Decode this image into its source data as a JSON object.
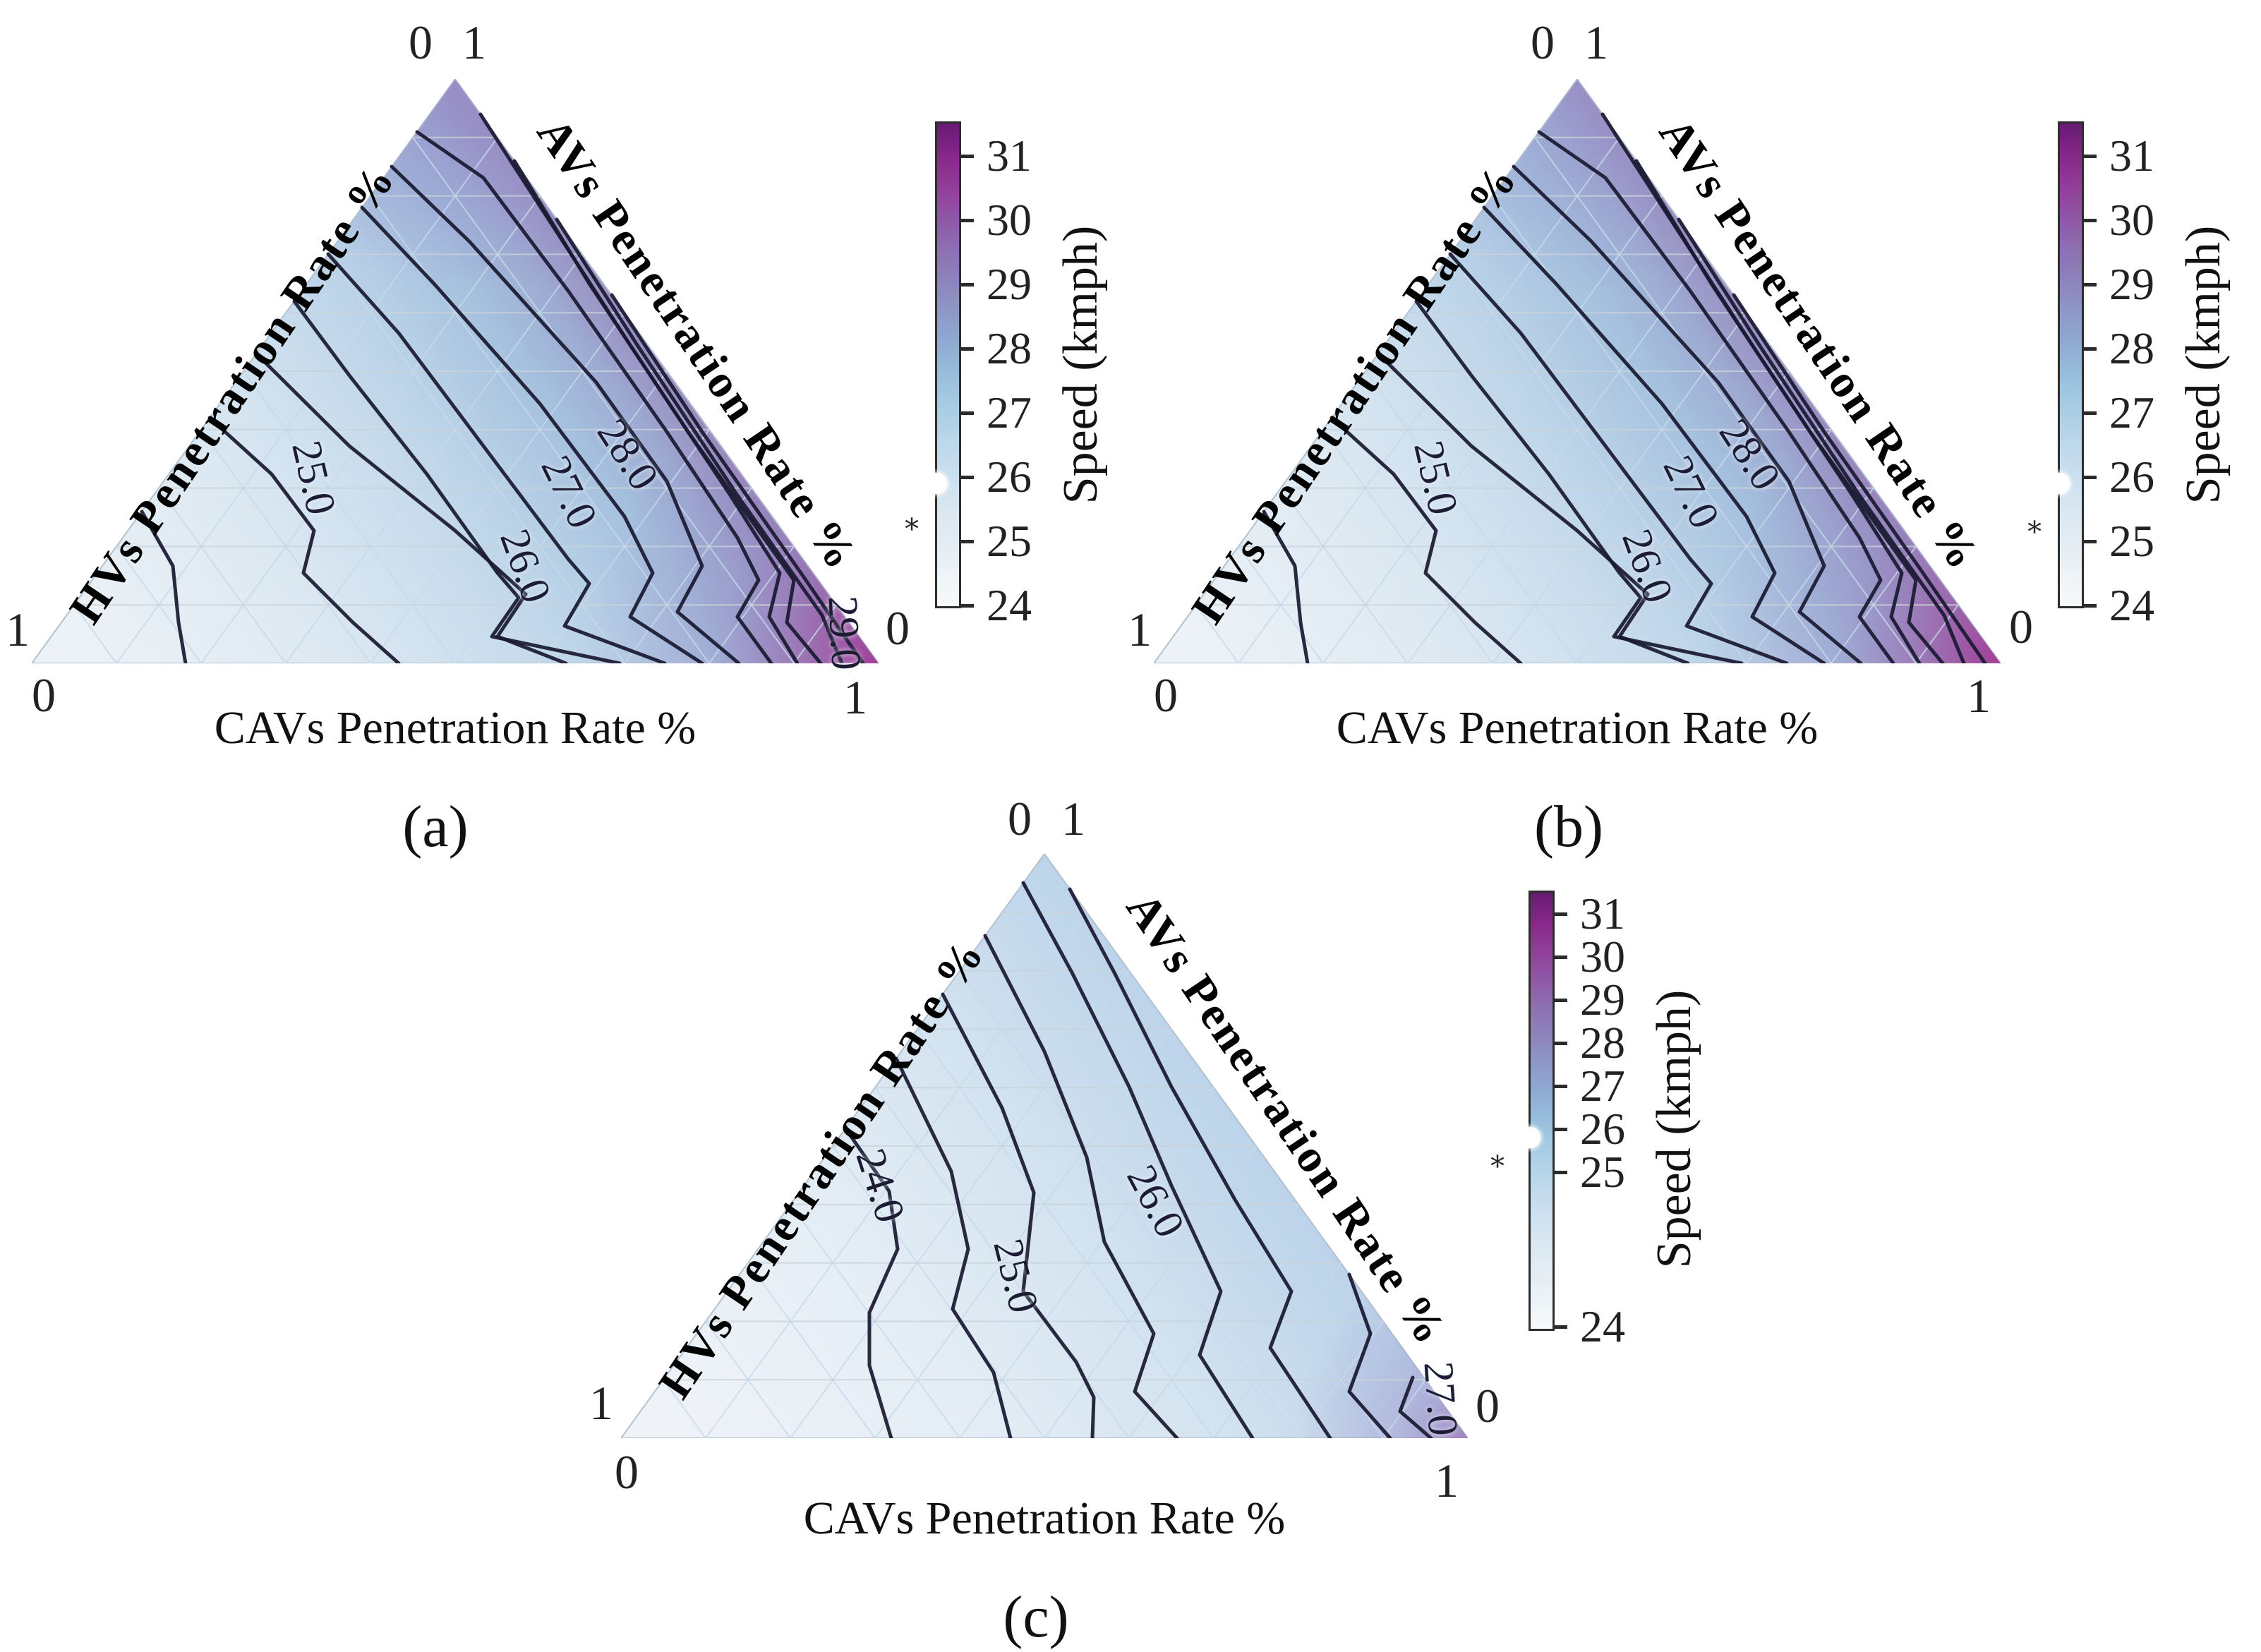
{
  "figure": {
    "title": "",
    "background": "#ffffff",
    "accent_colors": {
      "contour_line": "#1c1c34",
      "grid_line": "#c6daea",
      "colormap_low": "#f7fafb",
      "colormap_mid_blue": "#9cc3e0",
      "colormap_high_magenta": "#8a2b8d"
    }
  },
  "subplots": [
    {
      "id": "a",
      "caption": "(a)",
      "axes": {
        "left_label": "HVs Penetration Rate %",
        "right_label": "AVs Penetration Rate %",
        "bottom_label": "CAVs Penetration Rate %"
      },
      "corner_ticks": {
        "top_left": "0",
        "top_right": "1",
        "left_upper": "1",
        "left_lower": "0",
        "right_upper": "0",
        "right_lower": "1"
      },
      "contour_labels": [
        {
          "text": "25.0"
        },
        {
          "text": "26.0"
        },
        {
          "text": "27.0"
        },
        {
          "text": "28.0"
        },
        {
          "text": "29.0"
        }
      ],
      "colorbar": {
        "label": "Speed (kmph)",
        "ticks": [
          "31",
          "30",
          "29",
          "28",
          "27",
          "26",
          "25",
          "24"
        ],
        "marker": "white-dot-near-26",
        "small_glyph": "∗"
      }
    },
    {
      "id": "b",
      "caption": "(b)",
      "axes": {
        "left_label": "HVs Penetration Rate %",
        "right_label": "AVs Penetration Rate %",
        "bottom_label": "CAVs Penetration Rate %"
      },
      "corner_ticks": {
        "top_left": "0",
        "top_right": "1",
        "left_upper": "1",
        "left_lower": "0",
        "right_upper": "0",
        "right_lower": "1"
      },
      "contour_labels": [
        {
          "text": "25.0"
        },
        {
          "text": "26.0"
        },
        {
          "text": "27.0"
        },
        {
          "text": "28.0"
        }
      ],
      "colorbar": {
        "label": "Speed (kmph)",
        "ticks": [
          "31",
          "30",
          "29",
          "28",
          "27",
          "26",
          "25",
          "24"
        ],
        "marker": "white-dot-near-26",
        "small_glyph": "∗"
      }
    },
    {
      "id": "c",
      "caption": "(c)",
      "axes": {
        "left_label": "HVs Penetration Rate %",
        "right_label": "AVs Penetration Rate %",
        "bottom_label": "CAVs Penetration Rate %"
      },
      "corner_ticks": {
        "top_left": "0",
        "top_right": "1",
        "left_upper": "1",
        "left_lower": "0",
        "right_upper": "0",
        "right_lower": "1"
      },
      "contour_labels": [
        {
          "text": "24.0"
        },
        {
          "text": "25.0"
        },
        {
          "text": "26.0"
        },
        {
          "text": "27.0"
        }
      ],
      "colorbar": {
        "label": "Speed (kmph)",
        "ticks": [
          "31",
          "30",
          "29",
          "28",
          "27",
          "26",
          "25",
          "24"
        ],
        "marker": "white-dot-near-26",
        "small_glyph": "∗"
      }
    }
  ],
  "chart_data": [
    {
      "type": "ternary-contour",
      "subplot": "(a)",
      "axes": {
        "left": "HVs Penetration Rate %",
        "right": "AVs Penetration Rate %",
        "bottom": "CAVs Penetration Rate %",
        "range": [
          0,
          1
        ]
      },
      "value_label": "Speed (kmph)",
      "colorbar_ticks": [
        24,
        25,
        26,
        27,
        28,
        29,
        30,
        31
      ],
      "colorbar_range": [
        24,
        31.5
      ],
      "colormap": "white -> light blue -> blue-purple -> magenta (BuPu-like)",
      "labeled_contour_levels": [
        25.0,
        26.0,
        27.0,
        28.0,
        29.0
      ],
      "approx_contour_interval": 0.5,
      "approx_corner_speeds_kmph": {
        "all_HVs": 24.3,
        "all_AVs": 28.8,
        "all_CAVs": 31.3
      },
      "trend": "speed increases toward the 100% CAVs corner; highest values concentrated along the AVs-CAVs edge"
    },
    {
      "type": "ternary-contour",
      "subplot": "(b)",
      "axes": {
        "left": "HVs Penetration Rate %",
        "right": "AVs Penetration Rate %",
        "bottom": "CAVs Penetration Rate %",
        "range": [
          0,
          1
        ]
      },
      "value_label": "Speed (kmph)",
      "colorbar_ticks": [
        24,
        25,
        26,
        27,
        28,
        29,
        30,
        31
      ],
      "colorbar_range": [
        24,
        31.5
      ],
      "colormap": "white -> light blue -> blue-purple -> magenta (BuPu-like)",
      "labeled_contour_levels": [
        25.0,
        26.0,
        27.0,
        28.0
      ],
      "approx_contour_interval": 0.5,
      "approx_corner_speeds_kmph": {
        "all_HVs": 24.4,
        "all_AVs": 28.4,
        "all_CAVs": 31.1
      },
      "trend": "speed increases toward the 100% CAVs corner; slightly less purple near the AVs apex than (a)"
    },
    {
      "type": "ternary-contour",
      "subplot": "(c)",
      "axes": {
        "left": "HVs Penetration Rate %",
        "right": "AVs Penetration Rate %",
        "bottom": "CAVs Penetration Rate %",
        "range": [
          0,
          1
        ]
      },
      "value_label": "Speed (kmph)",
      "colorbar_ticks": [
        24,
        25,
        26,
        27,
        28,
        29,
        30,
        31
      ],
      "colorbar_range": [
        24,
        31.5
      ],
      "colormap": "white -> light blue -> blue-purple -> magenta (BuPu-like)",
      "labeled_contour_levels": [
        24.0,
        25.0,
        26.0,
        27.0
      ],
      "approx_contour_interval": 0.5,
      "approx_corner_speeds_kmph": {
        "all_HVs": 23.7,
        "all_AVs": 26.6,
        "all_CAVs": 27.9
      },
      "trend": "overall lower speeds; mild increase toward the 100% CAVs corner with small purple patch at that corner"
    }
  ]
}
